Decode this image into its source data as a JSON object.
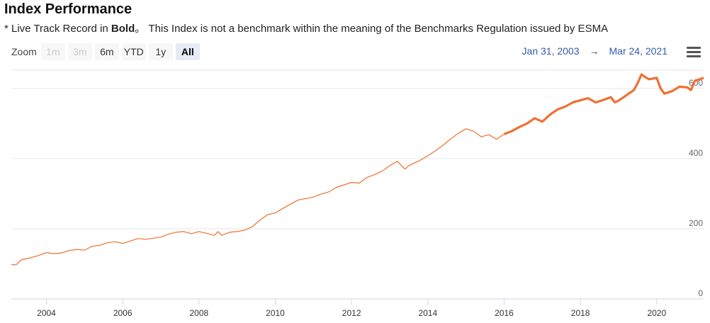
{
  "header": {
    "title": "Index Performance",
    "note_prefix": "* Live Track Record in ",
    "note_bold": "Bold",
    "note_suffix": "。 This Index is not a benchmark within the meaning of the Benchmarks Regulation issued by ESMA"
  },
  "toolbar": {
    "zoom_label": "Zoom",
    "buttons": [
      {
        "label": "1m",
        "state": "disabled"
      },
      {
        "label": "3m",
        "state": "disabled"
      },
      {
        "label": "6m",
        "state": "normal"
      },
      {
        "label": "YTD",
        "state": "normal"
      },
      {
        "label": "1y",
        "state": "normal"
      },
      {
        "label": "All",
        "state": "active"
      }
    ],
    "range_from": "Jan 31, 2003",
    "range_arrow": "→",
    "range_to": "Mar 24, 2021",
    "menu_icon": "hamburger-menu-icon"
  },
  "chart_data": {
    "type": "line",
    "line_color": "#f07030",
    "grid": true,
    "legend": "none",
    "xlim": [
      2003.08,
      2021.23
    ],
    "ylim": [
      0,
      650
    ],
    "x_ticks": [
      2004,
      2006,
      2008,
      2010,
      2012,
      2014,
      2016,
      2018,
      2020
    ],
    "y_ticks": [
      0,
      200,
      400,
      600
    ],
    "live_from": 2016.0,
    "series": [
      {
        "x": [
          2003.08,
          2003.2,
          2003.35,
          2003.55,
          2003.8,
          2004.0,
          2004.2,
          2004.4,
          2004.6,
          2004.8,
          2005.0,
          2005.2,
          2005.4,
          2005.6,
          2005.8,
          2006.0,
          2006.2,
          2006.4,
          2006.6,
          2006.8,
          2007.0,
          2007.2,
          2007.4,
          2007.6,
          2007.8,
          2008.0,
          2008.2,
          2008.4,
          2008.5,
          2008.6,
          2008.8,
          2009.0,
          2009.2,
          2009.4,
          2009.6,
          2009.8,
          2010.0,
          2010.2,
          2010.4,
          2010.6,
          2010.8,
          2011.0,
          2011.2,
          2011.4,
          2011.6,
          2011.8,
          2012.0,
          2012.2,
          2012.4,
          2012.6,
          2012.8,
          2013.0,
          2013.2,
          2013.4,
          2013.5,
          2013.6,
          2013.8,
          2014.0,
          2014.2,
          2014.4,
          2014.6,
          2014.8,
          2015.0,
          2015.2,
          2015.4,
          2015.6,
          2015.8,
          2016.0,
          2016.2,
          2016.4,
          2016.6,
          2016.8,
          2017.0,
          2017.2,
          2017.4,
          2017.6,
          2017.8,
          2018.0,
          2018.2,
          2018.4,
          2018.6,
          2018.8,
          2018.9,
          2019.0,
          2019.2,
          2019.4,
          2019.5,
          2019.6,
          2019.7,
          2019.8,
          2020.0,
          2020.1,
          2020.2,
          2020.4,
          2020.6,
          2020.8,
          2020.9,
          2021.0,
          2021.1,
          2021.23
        ],
        "y": [
          98,
          97,
          112,
          116,
          124,
          132,
          129,
          131,
          138,
          141,
          139,
          150,
          153,
          160,
          163,
          158,
          165,
          172,
          170,
          173,
          176,
          185,
          190,
          192,
          186,
          192,
          187,
          181,
          192,
          181,
          190,
          192,
          196,
          206,
          225,
          240,
          245,
          258,
          270,
          282,
          286,
          290,
          299,
          305,
          318,
          325,
          332,
          330,
          346,
          354,
          364,
          380,
          392,
          370,
          380,
          385,
          395,
          408,
          422,
          438,
          456,
          472,
          485,
          478,
          462,
          468,
          455,
          470,
          478,
          490,
          500,
          515,
          505,
          525,
          540,
          548,
          560,
          566,
          572,
          560,
          567,
          575,
          560,
          565,
          580,
          595,
          615,
          640,
          632,
          626,
          630,
          600,
          585,
          592,
          605,
          603,
          595,
          622,
          625,
          630
        ]
      }
    ]
  }
}
